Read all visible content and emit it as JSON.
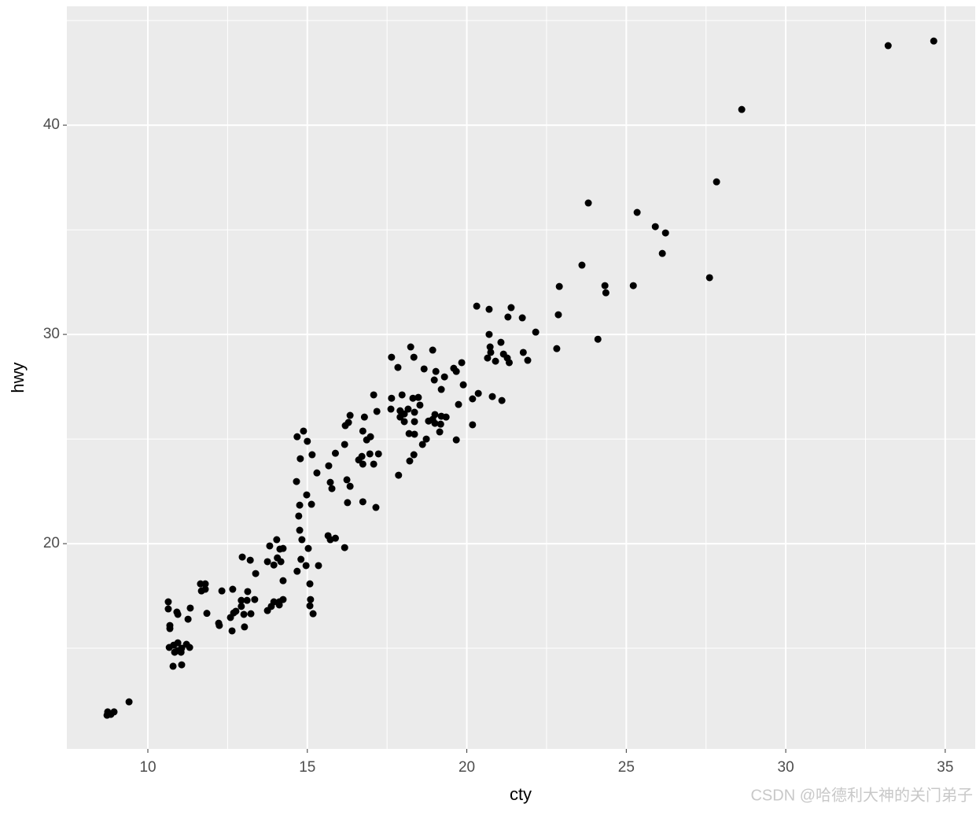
{
  "chart_data": {
    "type": "scatter",
    "x_label": "cty",
    "y_label": "hwy",
    "color": "#000000",
    "xlim": [
      7.46,
      35.94
    ],
    "ylim": [
      10.19,
      45.68
    ],
    "xticks": [
      10,
      15,
      20,
      25,
      30,
      35
    ],
    "yticks": [
      20,
      30,
      40
    ],
    "x_minor_ticks": [
      12.5,
      17.5,
      22.5,
      27.5,
      32.5
    ],
    "y_minor_ticks": [
      15,
      25,
      35,
      45
    ],
    "grid": true,
    "watermark": "CSDN @哈德利大神的关门弟子",
    "x": [
      34.64,
      33.21,
      28.62,
      27.83,
      23.81,
      25.34,
      25.91,
      26.23,
      26.13,
      23.61,
      27.61,
      22.9,
      24.33,
      24.36,
      25.22,
      20.31,
      20.7,
      21.39,
      21.29,
      21.74,
      22.87,
      22.16,
      20.7,
      21.07,
      24.11,
      22.82,
      20.73,
      20.75,
      21.15,
      21.77,
      20.65,
      20.9,
      21.27,
      21.33,
      21.91,
      19.84,
      18.24,
      18.93,
      17.64,
      18.34,
      17.84,
      18.66,
      19.59,
      19.03,
      19.67,
      19.3,
      18.98,
      19.89,
      19.2,
      20.36,
      17.08,
      17.97,
      18.31,
      20.8,
      20.18,
      17.64,
      18.48,
      21.1,
      19.74,
      18.53,
      17.62,
      17.91,
      18.16,
      18.36,
      17.18,
      16.34,
      16.79,
      17.91,
      18.04,
      19.0,
      19.2,
      19.35,
      18.93,
      16.29,
      18.04,
      18.36,
      18.8,
      19.0,
      19.18,
      20.18,
      16.19,
      14.88,
      16.74,
      18.19,
      18.36,
      14.68,
      19.15,
      16.98,
      15.0,
      16.86,
      18.73,
      19.67,
      18.61,
      16.17,
      15.88,
      15.15,
      16.96,
      17.23,
      18.34,
      16.71,
      14.78,
      16.61,
      18.21,
      16.74,
      17.08,
      15.67,
      15.3,
      17.86,
      16.24,
      14.66,
      15.72,
      16.34,
      15.77,
      14.98,
      16.74,
      16.26,
      15.13,
      17.15,
      14.76,
      14.73,
      14.76,
      14.83,
      15.65,
      15.88,
      15.72,
      16.17,
      14.04,
      13.82,
      14.14,
      14.24,
      15.03,
      14.06,
      14.8,
      13.75,
      12.96,
      13.21,
      14.17,
      14.96,
      15.35,
      13.95,
      14.68,
      13.38,
      14.24,
      15.08,
      11.65,
      11.8,
      11.8,
      11.68,
      12.32,
      12.66,
      13.13,
      11.85,
      12.93,
      13.11,
      13.35,
      13.95,
      14.12,
      14.24,
      13.87,
      14.12,
      13.75,
      15.1,
      15.08,
      15.18,
      12.93,
      12.76,
      12.69,
      13.01,
      13.23,
      12.59,
      10.64,
      10.64,
      10.91,
      10.94,
      11.33,
      11.26,
      12.22,
      12.24,
      10.69,
      10.69,
      13.03,
      12.64,
      10.94,
      11.21,
      11.31,
      10.67,
      10.81,
      11.06,
      10.84,
      10.94,
      11.04,
      10.79,
      11.06,
      8.74,
      8.84,
      8.72,
      8.94,
      9.41
    ],
    "values": [
      44.02,
      43.8,
      40.75,
      37.29,
      36.28,
      35.83,
      35.15,
      34.85,
      33.87,
      33.31,
      32.71,
      32.29,
      32.33,
      31.99,
      32.33,
      31.35,
      31.2,
      31.28,
      30.83,
      30.79,
      30.94,
      30.11,
      30.0,
      29.62,
      29.77,
      29.32,
      29.4,
      29.14,
      29.06,
      29.14,
      28.87,
      28.72,
      28.87,
      28.65,
      28.76,
      28.65,
      29.4,
      29.25,
      28.91,
      28.91,
      28.42,
      28.35,
      28.38,
      28.23,
      28.23,
      27.97,
      27.82,
      27.59,
      27.37,
      27.18,
      27.11,
      27.11,
      26.95,
      27.03,
      26.92,
      26.95,
      26.99,
      26.84,
      26.65,
      26.62,
      26.43,
      26.35,
      26.43,
      26.28,
      26.32,
      26.13,
      26.05,
      26.05,
      26.2,
      26.17,
      26.09,
      26.05,
      25.94,
      25.79,
      25.83,
      25.83,
      25.86,
      25.75,
      25.71,
      25.68,
      25.64,
      25.38,
      25.38,
      25.26,
      25.23,
      25.11,
      25.34,
      25.11,
      24.89,
      24.96,
      25.0,
      24.96,
      24.74,
      24.74,
      24.32,
      24.25,
      24.29,
      24.29,
      24.25,
      24.17,
      24.06,
      24.0,
      23.95,
      23.8,
      23.8,
      23.72,
      23.38,
      23.27,
      23.05,
      22.97,
      22.93,
      22.74,
      22.63,
      22.33,
      22.0,
      21.96,
      21.88,
      21.73,
      21.84,
      21.32,
      20.64,
      20.19,
      20.38,
      20.26,
      20.19,
      19.81,
      20.19,
      19.89,
      19.74,
      19.77,
      19.77,
      19.32,
      19.25,
      19.14,
      19.36,
      19.21,
      19.14,
      18.95,
      18.95,
      18.98,
      18.68,
      18.57,
      18.23,
      18.08,
      18.08,
      18.08,
      17.82,
      17.74,
      17.74,
      17.82,
      17.71,
      16.67,
      17.29,
      17.29,
      17.33,
      17.22,
      17.22,
      17.33,
      17.0,
      17.07,
      16.8,
      17.33,
      17.03,
      16.65,
      17.0,
      16.77,
      16.69,
      16.62,
      16.65,
      16.47,
      17.22,
      16.88,
      16.73,
      16.62,
      16.92,
      16.39,
      16.2,
      16.09,
      16.09,
      15.94,
      16.02,
      15.83,
      15.26,
      15.19,
      15.04,
      15.04,
      15.15,
      15.0,
      14.81,
      14.89,
      14.81,
      14.14,
      14.21,
      11.96,
      11.84,
      11.8,
      11.96,
      12.44
    ]
  }
}
